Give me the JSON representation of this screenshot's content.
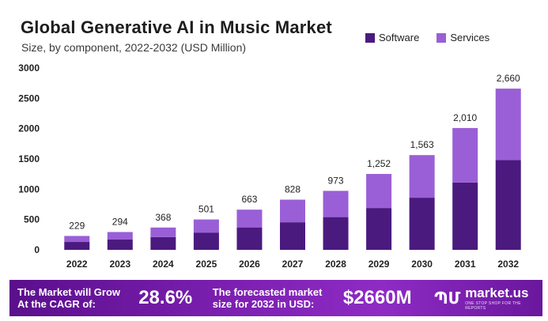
{
  "header": {
    "title": "Global Generative AI in Music Market",
    "subtitle": "Size, by component, 2022-2032 (USD Million)"
  },
  "legend": [
    {
      "label": "Software",
      "color": "#4b1a7f"
    },
    {
      "label": "Services",
      "color": "#9a5fd6"
    }
  ],
  "chart_data": {
    "type": "bar",
    "stacked": true,
    "title": "Global Generative AI in Music Market",
    "subtitle": "Size, by component, 2022-2032 (USD Million)",
    "categories": [
      "2022",
      "2023",
      "2024",
      "2025",
      "2026",
      "2027",
      "2028",
      "2029",
      "2030",
      "2031",
      "2032"
    ],
    "series": [
      {
        "name": "Software",
        "color": "#4b1a7f",
        "values": [
          130,
          170,
          210,
          285,
          370,
          455,
          540,
          690,
          860,
          1110,
          1480
        ]
      },
      {
        "name": "Services",
        "color": "#9a5fd6",
        "values": [
          99,
          124,
          158,
          216,
          293,
          373,
          433,
          562,
          703,
          900,
          1180
        ]
      }
    ],
    "totals": [
      229,
      294,
      368,
      501,
      663,
      828,
      973,
      1252,
      1563,
      2010,
      2660
    ],
    "total_labels": [
      "229",
      "294",
      "368",
      "501",
      "663",
      "828",
      "973",
      "1,252",
      "1,563",
      "2,010",
      "2,660"
    ],
    "yticks": [
      0,
      500,
      1000,
      1500,
      2000,
      2500,
      3000
    ],
    "ylim": [
      0,
      3000
    ],
    "grid": false,
    "legend_position": "top-right"
  },
  "footer": {
    "cagr_label_line1": "The Market will Grow",
    "cagr_label_line2": "At the CAGR of:",
    "cagr_value": "28.6%",
    "forecast_label_line1": "The forecasted market",
    "forecast_label_line2": "size for 2032 in USD:",
    "forecast_value": "$2660M",
    "brand_mark": "ՊՄ",
    "brand_name": "market.us",
    "brand_tagline": "ONE STOP SHOP FOR THE REPORTS"
  }
}
